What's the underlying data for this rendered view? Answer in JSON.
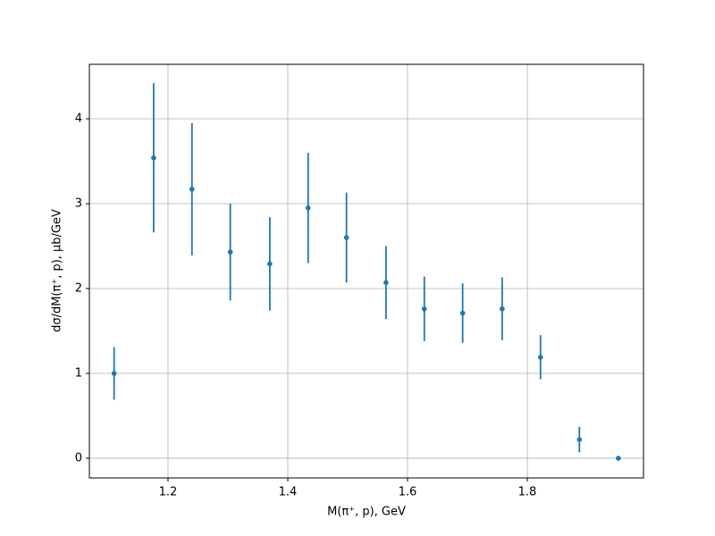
{
  "chart_data": {
    "type": "scatter",
    "x_label": "M(π⁺, p), GeV",
    "y_label": "dσ/dM(π⁺, p), μb/GeV",
    "x": [
      1.11,
      1.176,
      1.24,
      1.304,
      1.37,
      1.434,
      1.498,
      1.564,
      1.628,
      1.692,
      1.758,
      1.822,
      1.887,
      1.952
    ],
    "values": [
      1.0,
      3.54,
      3.17,
      2.43,
      2.29,
      2.95,
      2.6,
      2.07,
      1.76,
      1.71,
      1.76,
      1.19,
      0.22,
      0.0
    ],
    "errors": [
      0.31,
      0.88,
      0.78,
      0.57,
      0.55,
      0.65,
      0.53,
      0.43,
      0.38,
      0.35,
      0.37,
      0.26,
      0.15,
      0.01
    ],
    "color": "#1f77b4",
    "xlim": [
      1.0687,
      1.994
    ],
    "ylim": [
      -0.232,
      4.642
    ],
    "xticks": [
      1.2,
      1.4,
      1.6,
      1.8
    ],
    "yticks": [
      0,
      1,
      2,
      3,
      4
    ],
    "grid": true
  }
}
